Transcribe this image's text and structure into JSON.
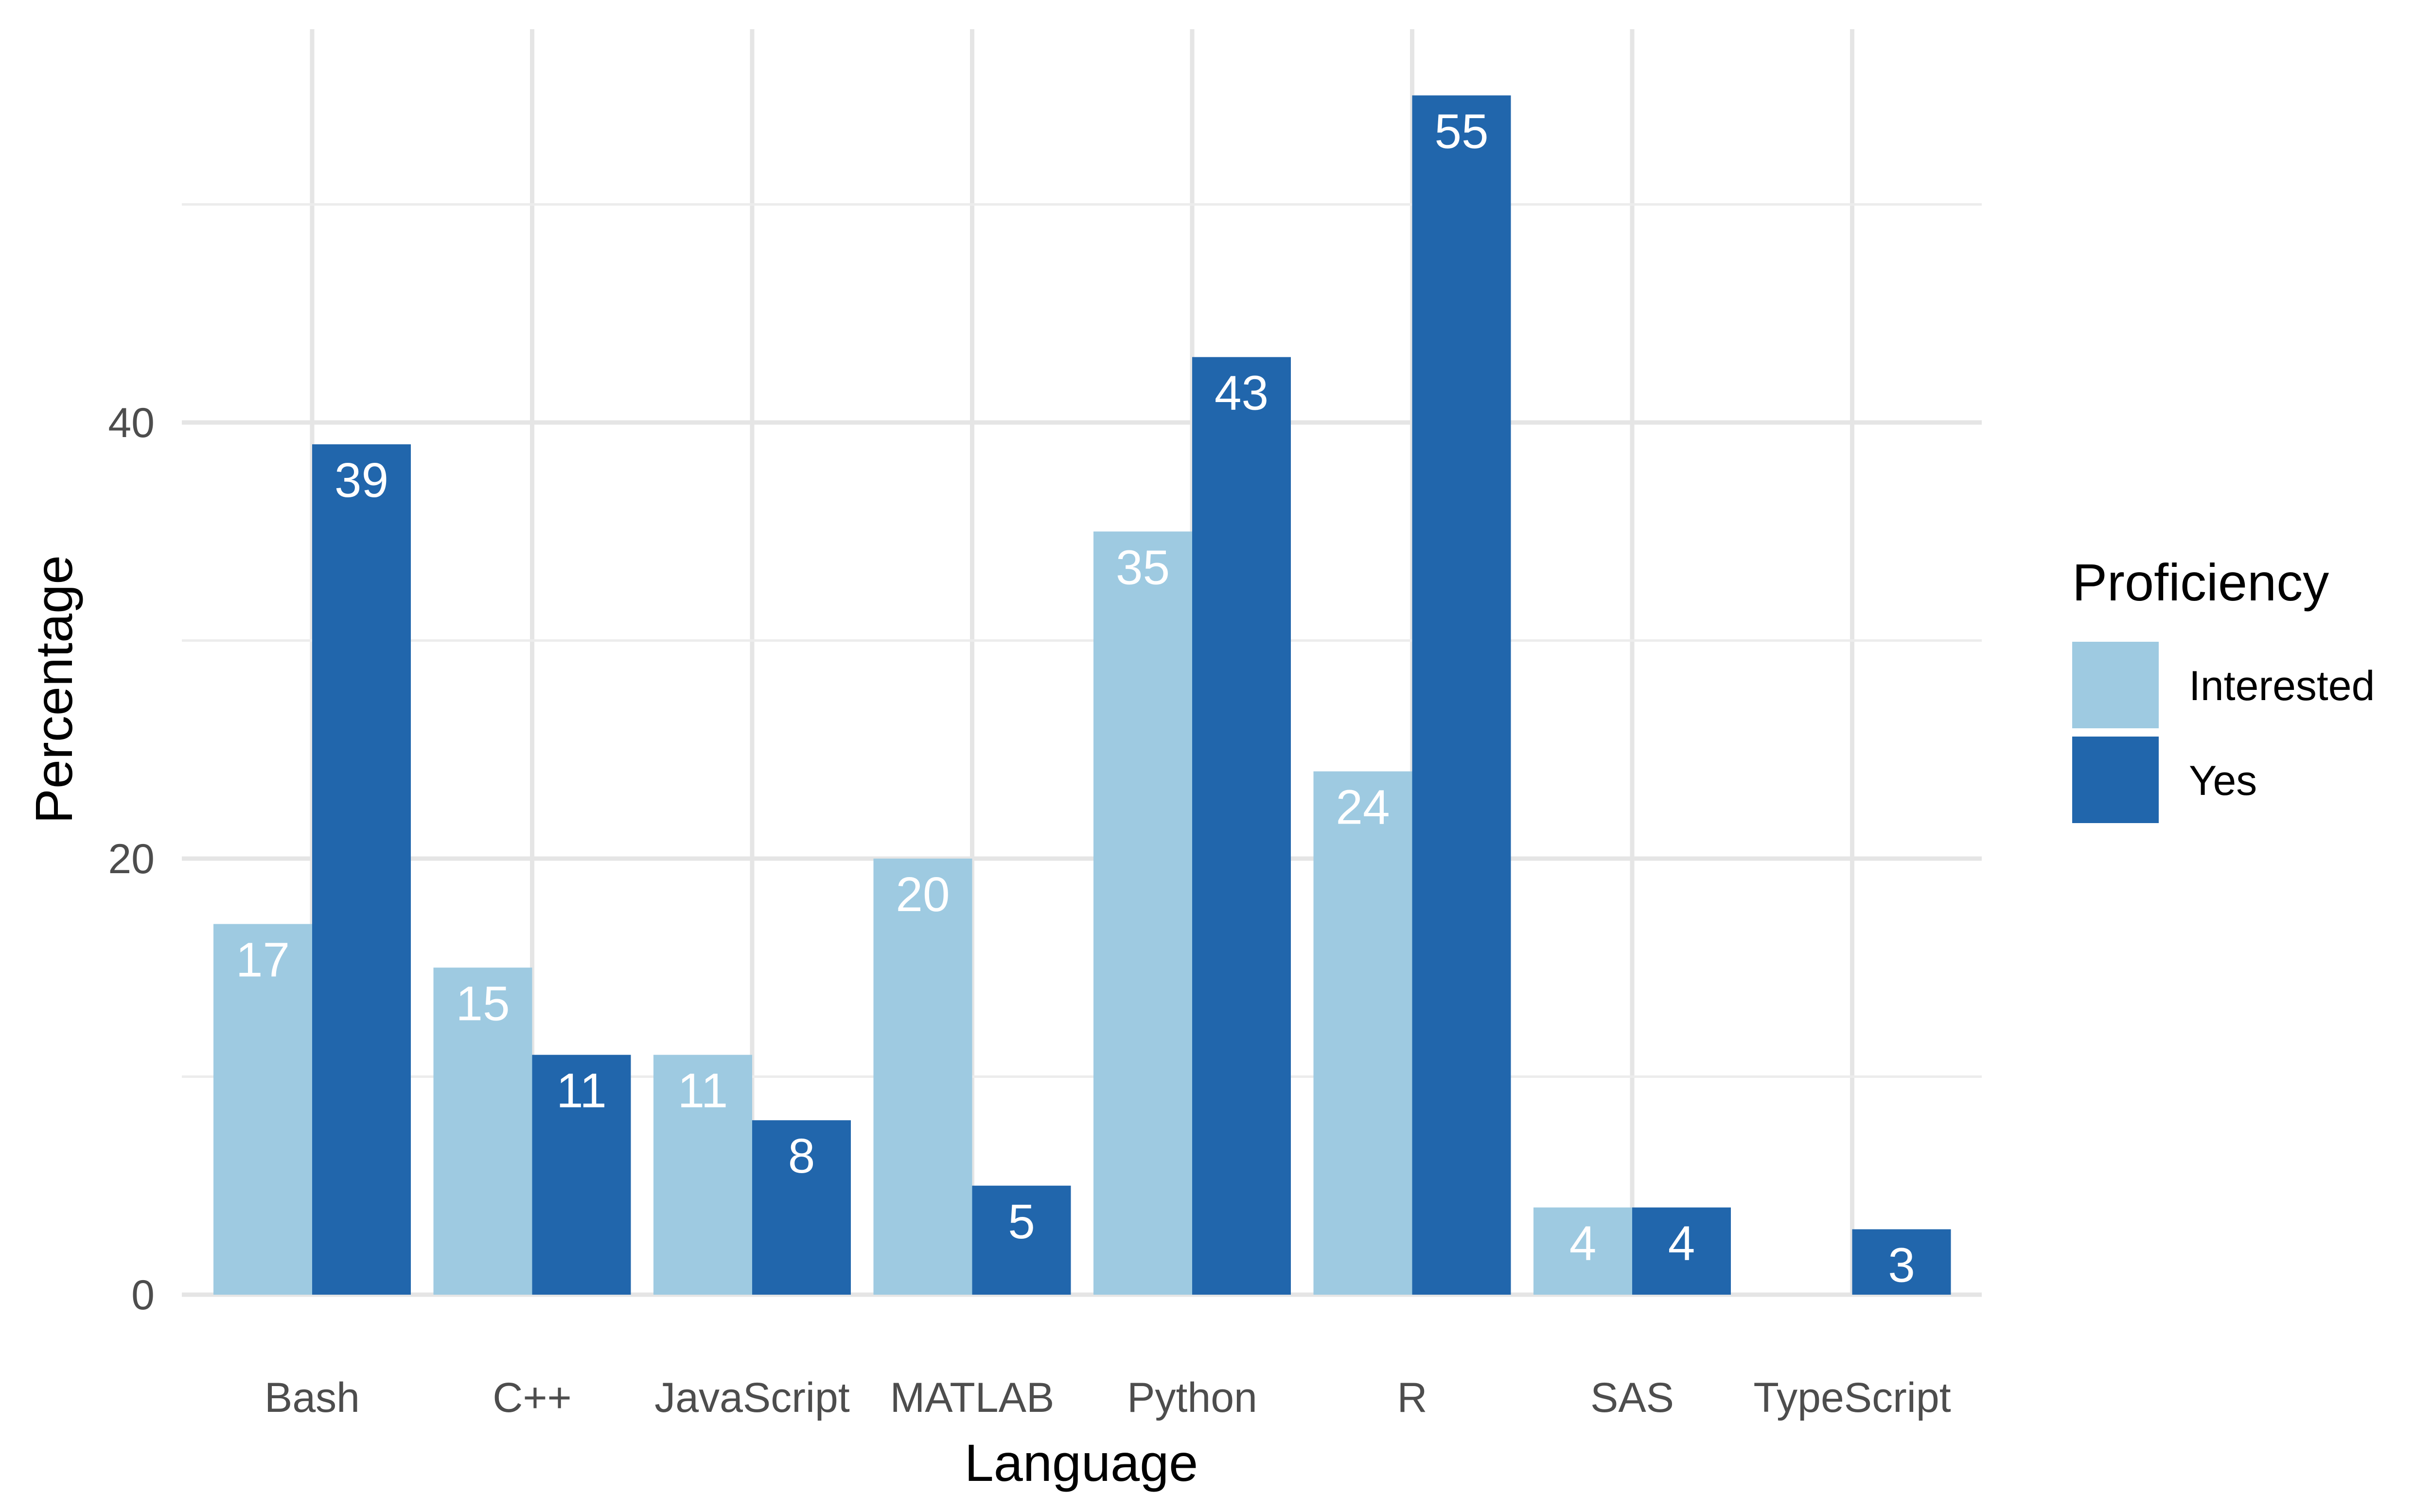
{
  "chart_data": {
    "type": "bar",
    "title": "",
    "xlabel": "Language",
    "ylabel": "Percentage",
    "categories": [
      "Bash",
      "C++",
      "JavaScript",
      "MATLAB",
      "Python",
      "R",
      "SAS",
      "TypeScript"
    ],
    "series": [
      {
        "name": "Interested",
        "color": "#9ecae1",
        "values": [
          17,
          15,
          11,
          20,
          35,
          24,
          4,
          null
        ]
      },
      {
        "name": "Yes",
        "color": "#2166ac",
        "values": [
          39,
          11,
          8,
          5,
          43,
          55,
          4,
          3
        ]
      }
    ],
    "ylim": [
      0,
      58
    ],
    "yticks": [
      0,
      20,
      40
    ],
    "grid": true,
    "legend": {
      "title": "Proficiency",
      "position": "right"
    },
    "data_labels": true
  }
}
